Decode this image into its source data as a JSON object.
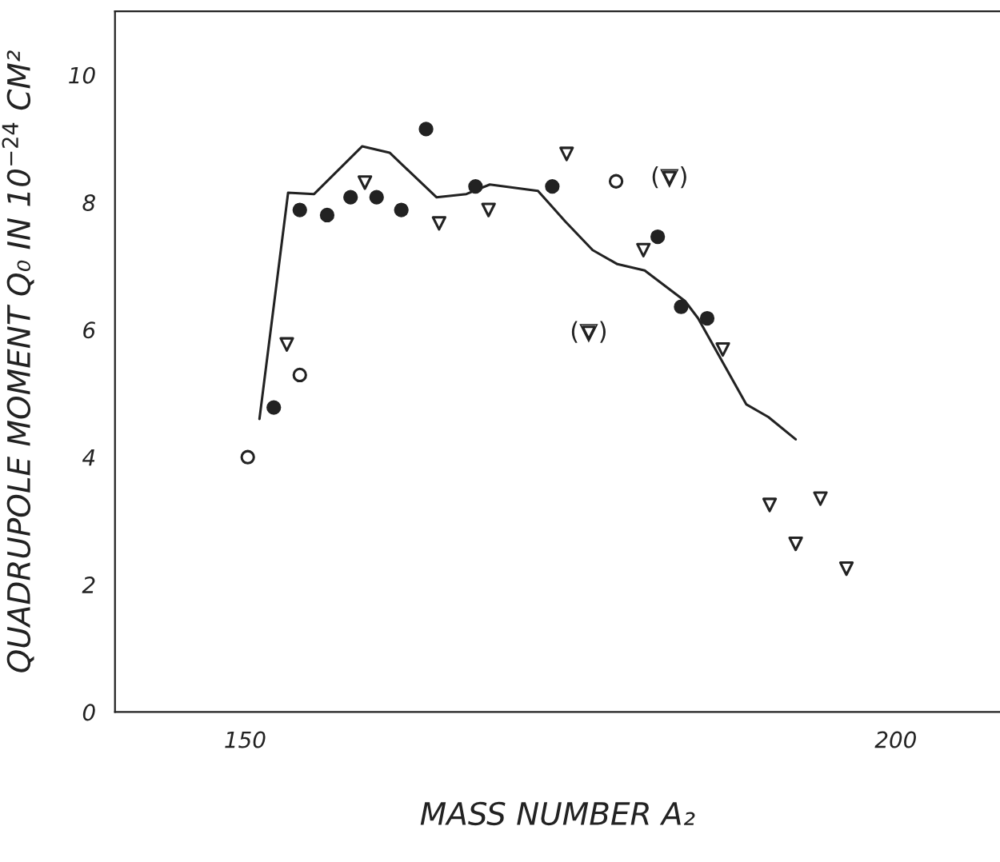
{
  "chart_data": {
    "type": "scatter",
    "xlabel": "MASS NUMBER A₂",
    "ylabel": "QUADRUPOLE MOMENT Q₀ IN 10$^{−24}$ CM²",
    "xlim": [
      140,
      208
    ],
    "xticks": [
      150,
      200
    ],
    "ylim": [
      0,
      11
    ],
    "yticks": [
      0,
      2,
      4,
      6,
      8,
      10
    ],
    "grid": false,
    "legend": false,
    "series": [
      {
        "type": "line",
        "color": "#222222",
        "marker": "none",
        "line_style": "solid",
        "x": [
          151.1,
          153.3,
          155.3,
          159.0,
          161.1,
          164.7,
          167.0,
          168.8,
          172.5,
          174.6,
          176.7,
          178.6,
          180.7,
          183.8,
          184.8,
          188.5,
          190.2,
          192.3
        ],
        "values": [
          4.6,
          8.15,
          8.13,
          8.88,
          8.78,
          8.08,
          8.13,
          8.28,
          8.18,
          7.7,
          7.25,
          7.03,
          6.93,
          6.45,
          6.18,
          4.83,
          4.63,
          4.28
        ]
      },
      {
        "color": "#222222",
        "marker": "circle",
        "x": [
          152.2,
          154.2,
          156.3,
          158.1,
          160.1,
          162.0,
          163.9,
          167.7,
          173.6,
          181.7,
          183.5,
          185.5
        ],
        "values": [
          4.78,
          7.88,
          7.8,
          8.08,
          8.08,
          7.88,
          9.15,
          8.25,
          8.25,
          7.46,
          6.36,
          6.18
        ]
      },
      {
        "color": "#ffffff",
        "marker": "circle",
        "x": [
          150.2,
          154.2,
          178.5
        ],
        "values": [
          4.0,
          5.29,
          8.33
        ]
      },
      {
        "color": "#ffffff",
        "marker": "triangle",
        "x": [
          153.2,
          159.2,
          164.9,
          168.7,
          174.7,
          180.6,
          186.7,
          190.3,
          194.2,
          192.3,
          196.2
        ],
        "values": [
          5.77,
          8.31,
          7.67,
          7.88,
          8.76,
          7.25,
          5.69,
          3.25,
          3.35,
          2.64,
          2.25
        ]
      },
      {
        "color": "#ffffff",
        "marker": "triangle",
        "x": [
          182.6,
          176.4
        ],
        "values": [
          8.38,
          5.95
        ]
      }
    ],
    "annotations": [
      "(▽)",
      "(▽)"
    ]
  }
}
